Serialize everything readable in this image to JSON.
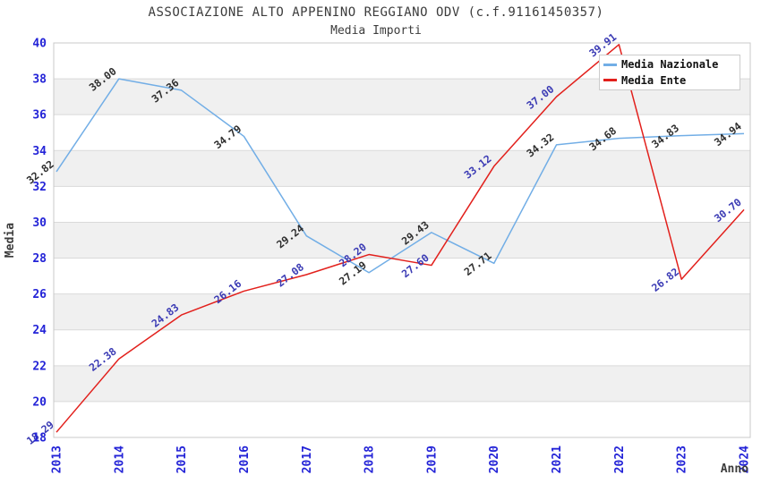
{
  "title": "ASSOCIAZIONE ALTO APPENINO REGGIANO ODV (c.f.91161450357)",
  "subtitle": "Media Importi",
  "chart_data": {
    "type": "line",
    "x": [
      "2013",
      "2014",
      "2015",
      "2016",
      "2017",
      "2018",
      "2019",
      "2020",
      "2021",
      "2022",
      "2023",
      "2024"
    ],
    "series": [
      {
        "name": "Media Nazionale",
        "color": "#72aee6",
        "label_color": "#2e2e2e",
        "values": [
          32.82,
          38.0,
          37.36,
          34.79,
          29.24,
          27.19,
          29.43,
          27.71,
          34.32,
          34.68,
          34.83,
          34.94
        ]
      },
      {
        "name": "Media Ente",
        "color": "#e2201c",
        "label_color": "#3a3ab4",
        "values": [
          18.29,
          22.38,
          24.83,
          26.16,
          27.08,
          28.2,
          27.6,
          33.12,
          37.0,
          39.91,
          26.82,
          30.7
        ]
      }
    ],
    "xlabel": "Anno",
    "ylabel": "Media",
    "ylim": [
      18,
      40
    ],
    "yticks": [
      18,
      20,
      22,
      24,
      26,
      28,
      30,
      32,
      34,
      36,
      38,
      40
    ],
    "ytick_step": 2,
    "grid": true,
    "band_fill": "striped",
    "legend_position": "top-right"
  },
  "colors": {
    "background": "#ffffff",
    "band_gray": "#f0f0f0",
    "grid_line": "#d9d9d9",
    "plot_border": "#c8c8c8",
    "tick_label": "#2323d7",
    "axis_label": "#3c3c3c",
    "title": "#3c3c3c",
    "legend_text": "#111111",
    "legend_border": "#cccccc"
  }
}
